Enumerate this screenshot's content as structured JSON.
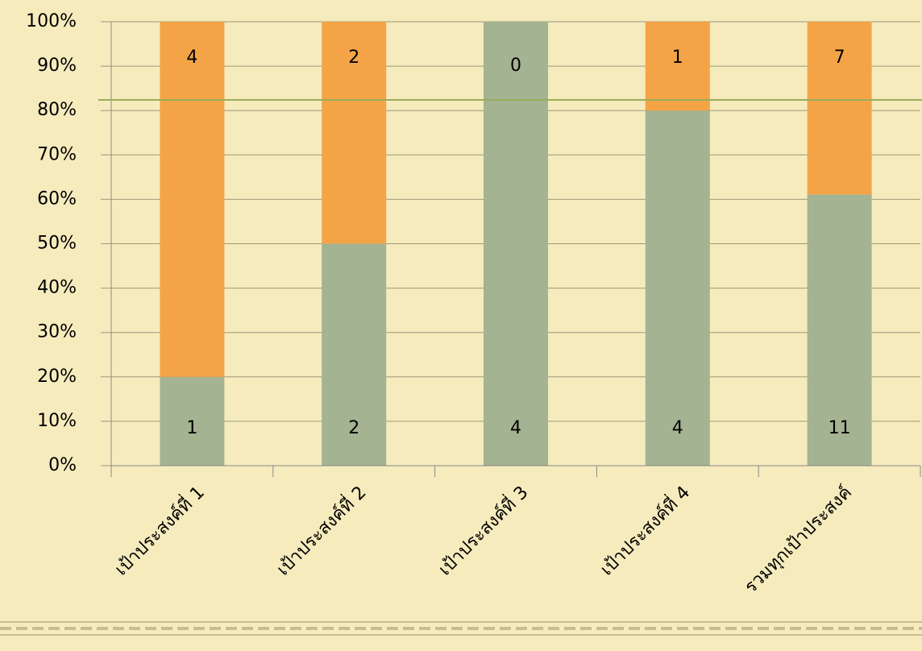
{
  "chart_data": {
    "type": "bar",
    "stacking": "percent",
    "categories": [
      "เป้าประสงค์ที่ 1",
      "เป้าประสงค์ที่ 2",
      "เป้าประสงค์ที่ 3",
      "เป้าประสงค์ที่ 4",
      "รวมทุกเป้าประสงค์"
    ],
    "series": [
      {
        "color": "#a4b391",
        "values": [
          1,
          2,
          4,
          4,
          11
        ]
      },
      {
        "color": "#f4a447",
        "values": [
          4,
          2,
          0,
          1,
          7
        ]
      }
    ],
    "ylim": [
      0,
      100
    ],
    "yticks": [
      {
        "value": 0,
        "label": "0%"
      },
      {
        "value": 10,
        "label": "10%"
      },
      {
        "value": 20,
        "label": "20%"
      },
      {
        "value": 30,
        "label": "30%"
      },
      {
        "value": 40,
        "label": "40%"
      },
      {
        "value": 50,
        "label": "50%"
      },
      {
        "value": 60,
        "label": "60%"
      },
      {
        "value": 70,
        "label": "70%"
      },
      {
        "value": 80,
        "label": "80%"
      },
      {
        "value": 90,
        "label": "90%"
      },
      {
        "value": 100,
        "label": "100%"
      }
    ],
    "grid": true
  }
}
